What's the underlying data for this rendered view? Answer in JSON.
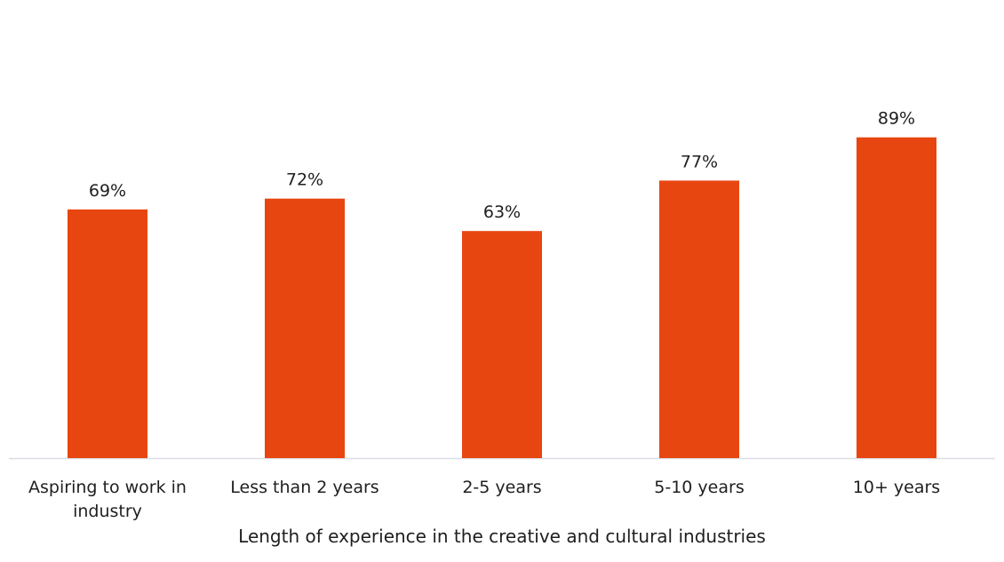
{
  "chart_data": {
    "type": "bar",
    "categories": [
      [
        "Aspiring to work in",
        "industry"
      ],
      [
        "Less than 2 years"
      ],
      [
        "2-5 years"
      ],
      [
        "5-10 years"
      ],
      [
        "10+ years"
      ]
    ],
    "values": [
      69,
      72,
      63,
      77,
      89
    ],
    "value_labels": [
      "69%",
      "72%",
      "63%",
      "77%",
      "89%"
    ],
    "xlabel": "Length of experience in the creative and cultural industries",
    "ylabel": "",
    "title": "",
    "ylim": [
      0,
      100
    ],
    "grid": false,
    "legend": "none",
    "colors": {
      "bar": "#E84611",
      "axis": "#D9DEE8",
      "text": "#1F1F1F"
    }
  }
}
